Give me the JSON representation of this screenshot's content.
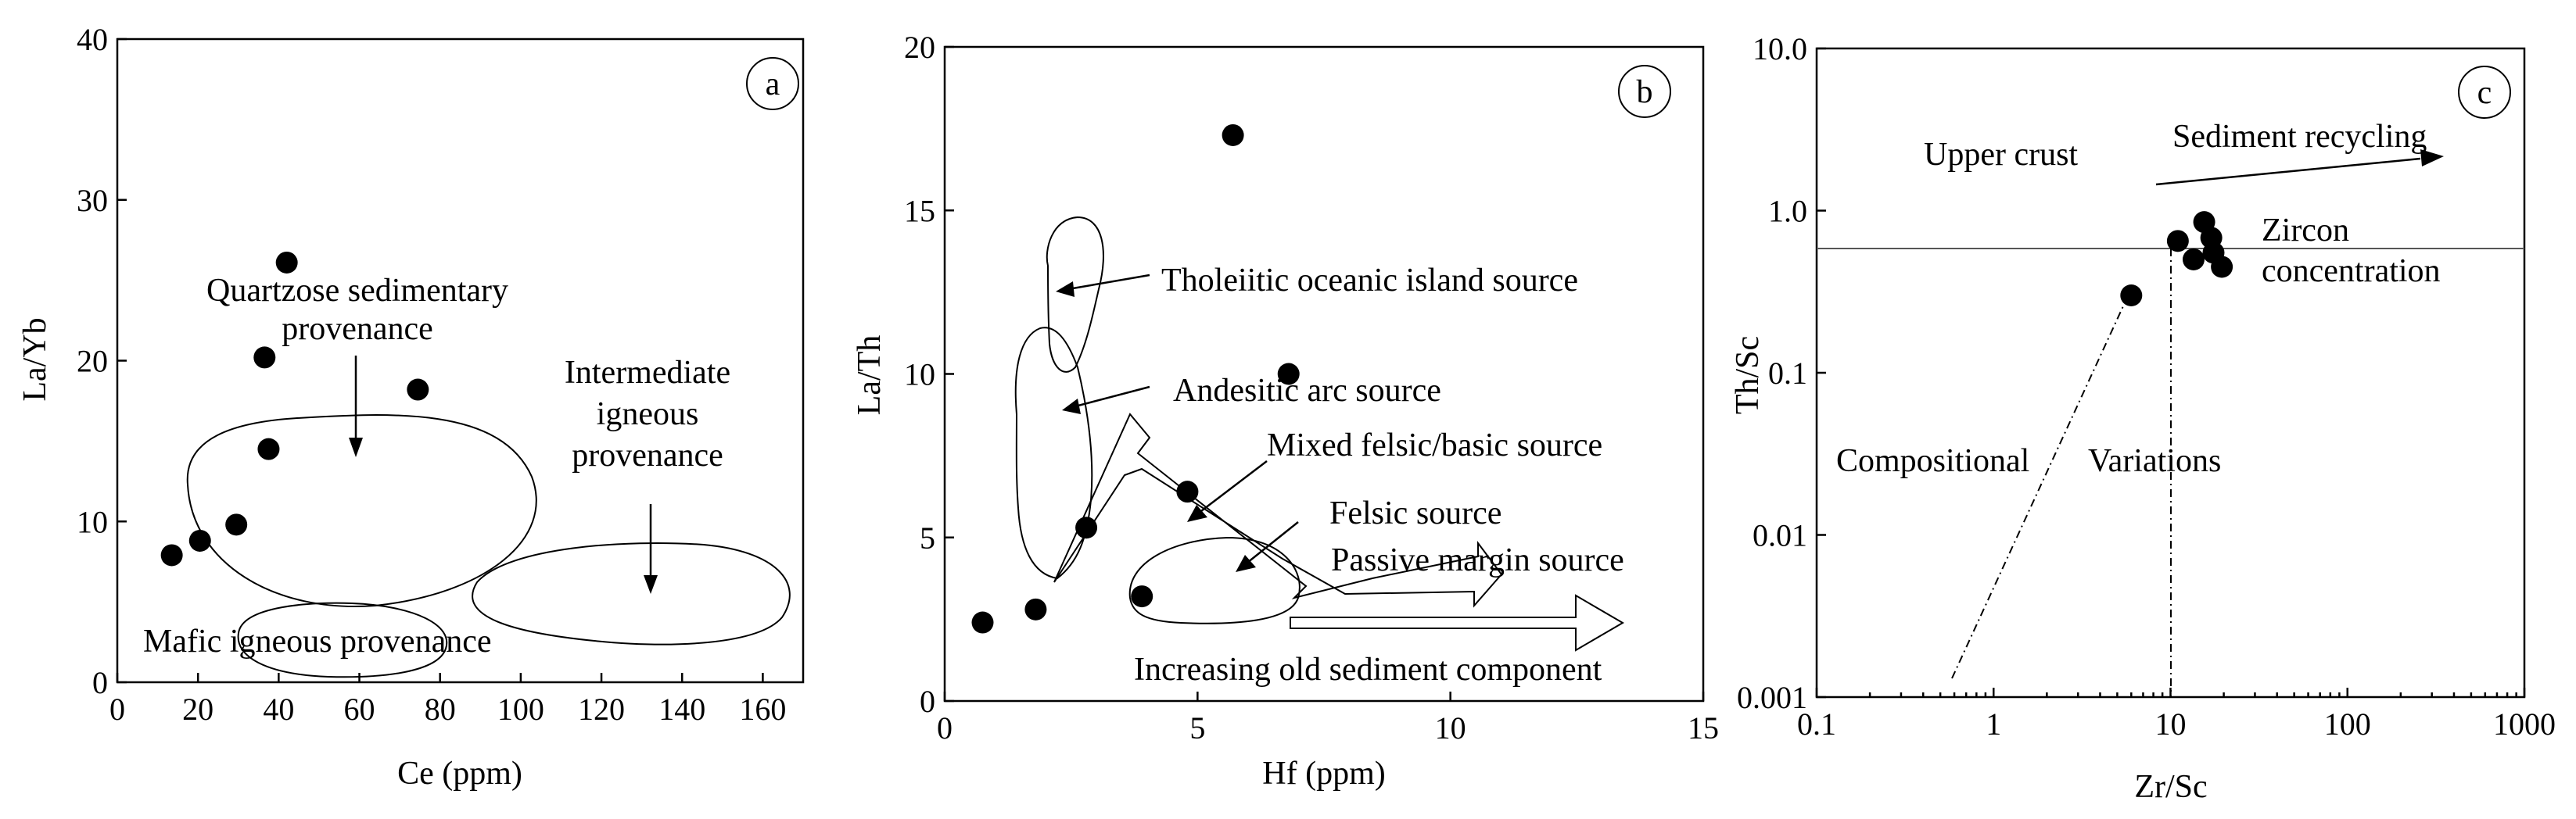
{
  "chart_data": [
    {
      "type": "scatter",
      "panel_label": "a",
      "xlabel": "Ce (ppm)",
      "ylabel": "La/Yb",
      "xlim": [
        0,
        170
      ],
      "ylim": [
        0,
        40
      ],
      "xticks": [
        "0",
        "20",
        "40",
        "60",
        "80",
        "100",
        "120",
        "140",
        "160"
      ],
      "yticks": [
        "0",
        "10",
        "20",
        "30",
        "40"
      ],
      "points": [
        {
          "x": 13.5,
          "y": 7.9
        },
        {
          "x": 20.5,
          "y": 8.8
        },
        {
          "x": 29.5,
          "y": 9.8
        },
        {
          "x": 37.5,
          "y": 14.5
        },
        {
          "x": 36.5,
          "y": 20.2
        },
        {
          "x": 42,
          "y": 26.1
        },
        {
          "x": 74.5,
          "y": 18.2
        }
      ],
      "annotations": [
        {
          "id": "quartzose_1",
          "text": "Quartzose sedimentary"
        },
        {
          "id": "quartzose_2",
          "text": "provenance"
        },
        {
          "id": "intermediate_1",
          "text": "Intermediate"
        },
        {
          "id": "intermediate_2",
          "text": "igneous"
        },
        {
          "id": "intermediate_3",
          "text": "provenance"
        },
        {
          "id": "mafic",
          "text": "Mafic igneous provenance"
        }
      ],
      "grid": false
    },
    {
      "type": "scatter",
      "panel_label": "b",
      "xlabel": "Hf (ppm)",
      "ylabel": "La/Th",
      "xlim": [
        0,
        15
      ],
      "ylim": [
        0,
        20
      ],
      "xticks": [
        "0",
        "5",
        "10",
        "15"
      ],
      "yticks": [
        "0",
        "5",
        "10",
        "15",
        "20"
      ],
      "points": [
        {
          "x": 0.75,
          "y": 2.4
        },
        {
          "x": 1.8,
          "y": 2.8
        },
        {
          "x": 2.8,
          "y": 5.3
        },
        {
          "x": 3.9,
          "y": 3.2
        },
        {
          "x": 4.8,
          "y": 6.4
        },
        {
          "x": 5.7,
          "y": 17.3
        },
        {
          "x": 6.8,
          "y": 10.0
        }
      ],
      "annotations": [
        {
          "id": "tholeiitic",
          "text": "Tholeiitic oceanic island source"
        },
        {
          "id": "andesitic",
          "text": "Andesitic arc source"
        },
        {
          "id": "mixed",
          "text": "Mixed felsic/basic source"
        },
        {
          "id": "felsic",
          "text": "Felsic source"
        },
        {
          "id": "passive",
          "text": "Passive margin source"
        },
        {
          "id": "increasing",
          "text": "Increasing old sediment component"
        }
      ],
      "grid": false
    },
    {
      "type": "scatter",
      "panel_label": "c",
      "xlabel": "Zr/Sc",
      "ylabel": "Th/Sc",
      "xscale": "log",
      "yscale": "log",
      "xlim": [
        0.1,
        1000
      ],
      "ylim": [
        0.001,
        10
      ],
      "xticks": [
        "0.1",
        "1",
        "10",
        "100",
        "1000"
      ],
      "yticks": [
        "0.001",
        "0.01",
        "0.1",
        "1.0",
        "10.0"
      ],
      "points": [
        {
          "x": 6,
          "y": 0.3
        },
        {
          "x": 11,
          "y": 0.65
        },
        {
          "x": 13.5,
          "y": 0.5
        },
        {
          "x": 15.5,
          "y": 0.85
        },
        {
          "x": 17,
          "y": 0.68
        },
        {
          "x": 17.5,
          "y": 0.55
        },
        {
          "x": 19.5,
          "y": 0.45
        }
      ],
      "annotations": [
        {
          "id": "upper_crust",
          "text": "Upper crust"
        },
        {
          "id": "recycling",
          "text": "Sediment recycling"
        },
        {
          "id": "zircon_1",
          "text": "Zircon"
        },
        {
          "id": "zircon_2",
          "text": "concentration"
        },
        {
          "id": "comp_1",
          "text": "Compositional"
        },
        {
          "id": "comp_2",
          "text": "Variations"
        }
      ],
      "grid": false
    }
  ]
}
